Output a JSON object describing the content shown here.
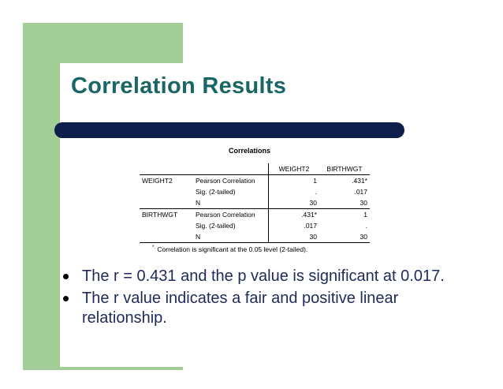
{
  "slide": {
    "title": "Correlation Results"
  },
  "table": {
    "caption": "Correlations",
    "columns": [
      "WEIGHT2",
      "BIRTHWGT"
    ],
    "rows": [
      {
        "variable": "WEIGHT2",
        "stats": [
          {
            "label": "Pearson Correlation",
            "values": [
              "1",
              ".431*"
            ]
          },
          {
            "label": "Sig. (2-tailed)",
            "values": [
              ".",
              ".017"
            ]
          },
          {
            "label": "N",
            "values": [
              "30",
              "30"
            ]
          }
        ]
      },
      {
        "variable": "BIRTHWGT",
        "stats": [
          {
            "label": "Pearson Correlation",
            "values": [
              ".431*",
              "1"
            ]
          },
          {
            "label": "Sig. (2-tailed)",
            "values": [
              ".017",
              "."
            ]
          },
          {
            "label": "N",
            "values": [
              "30",
              "30"
            ]
          }
        ]
      }
    ],
    "footnote_marker": "*.",
    "footnote_text": "Correlation is significant at the 0.05 level (2-tailed)."
  },
  "bullets": [
    "The r = 0.431 and the p value is significant at 0.017.",
    "The r value indicates a fair and positive linear relationship."
  ],
  "colors": {
    "green_block": "#a3cd96",
    "title_teal": "#1a6664",
    "navy_bar": "#0d1f4a",
    "bullet_text": "#1f2a5a"
  }
}
